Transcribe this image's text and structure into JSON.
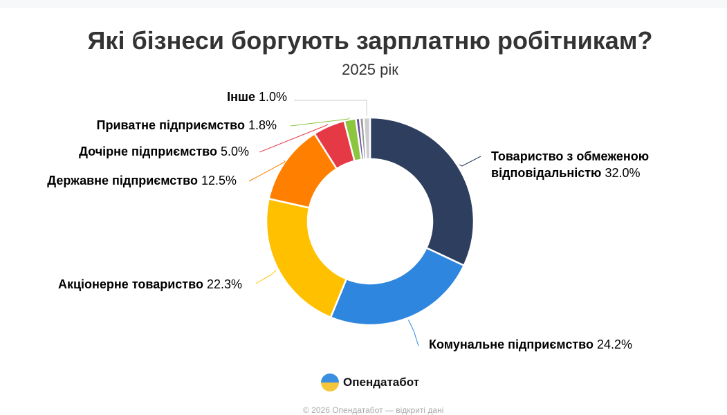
{
  "chart_data": {
    "type": "pie",
    "donut": true,
    "title": "Які бізнеси боргують зарплатню робітникам?",
    "subtitle": "2025 рік",
    "slices": [
      {
        "label": "Товариство з обмеженою відповідальністю",
        "label_lines": [
          "Товариство з обмеженою",
          "відповідальністю"
        ],
        "value": 32.0,
        "display": "32.0%",
        "color": "#2e3e5e"
      },
      {
        "label": "Комунальне підприємство",
        "value": 24.2,
        "display": "24.2%",
        "color": "#2e86de"
      },
      {
        "label": "Акціонерне товариство",
        "value": 22.3,
        "display": "22.3%",
        "color": "#ffc000"
      },
      {
        "label": "Державне підприємство",
        "value": 12.5,
        "display": "12.5%",
        "color": "#ff8000"
      },
      {
        "label": "Дочірне підприємство",
        "value": 5.0,
        "display": "5.0%",
        "color": "#e63946"
      },
      {
        "label": "Приватне підприємство",
        "value": 1.8,
        "display": "1.8%",
        "color": "#8cc63f"
      },
      {
        "label": "",
        "value": 0.6,
        "display": "",
        "color": "#6a4c9c"
      },
      {
        "label": "",
        "value": 0.6,
        "display": "",
        "color": "#999999"
      },
      {
        "label": "Інше",
        "value": 1.0,
        "display": "1.0%",
        "color": "#cccccc"
      }
    ]
  },
  "brand": "Опендатабот",
  "footer": "© 2026 Опендатабот — відкриті дані"
}
